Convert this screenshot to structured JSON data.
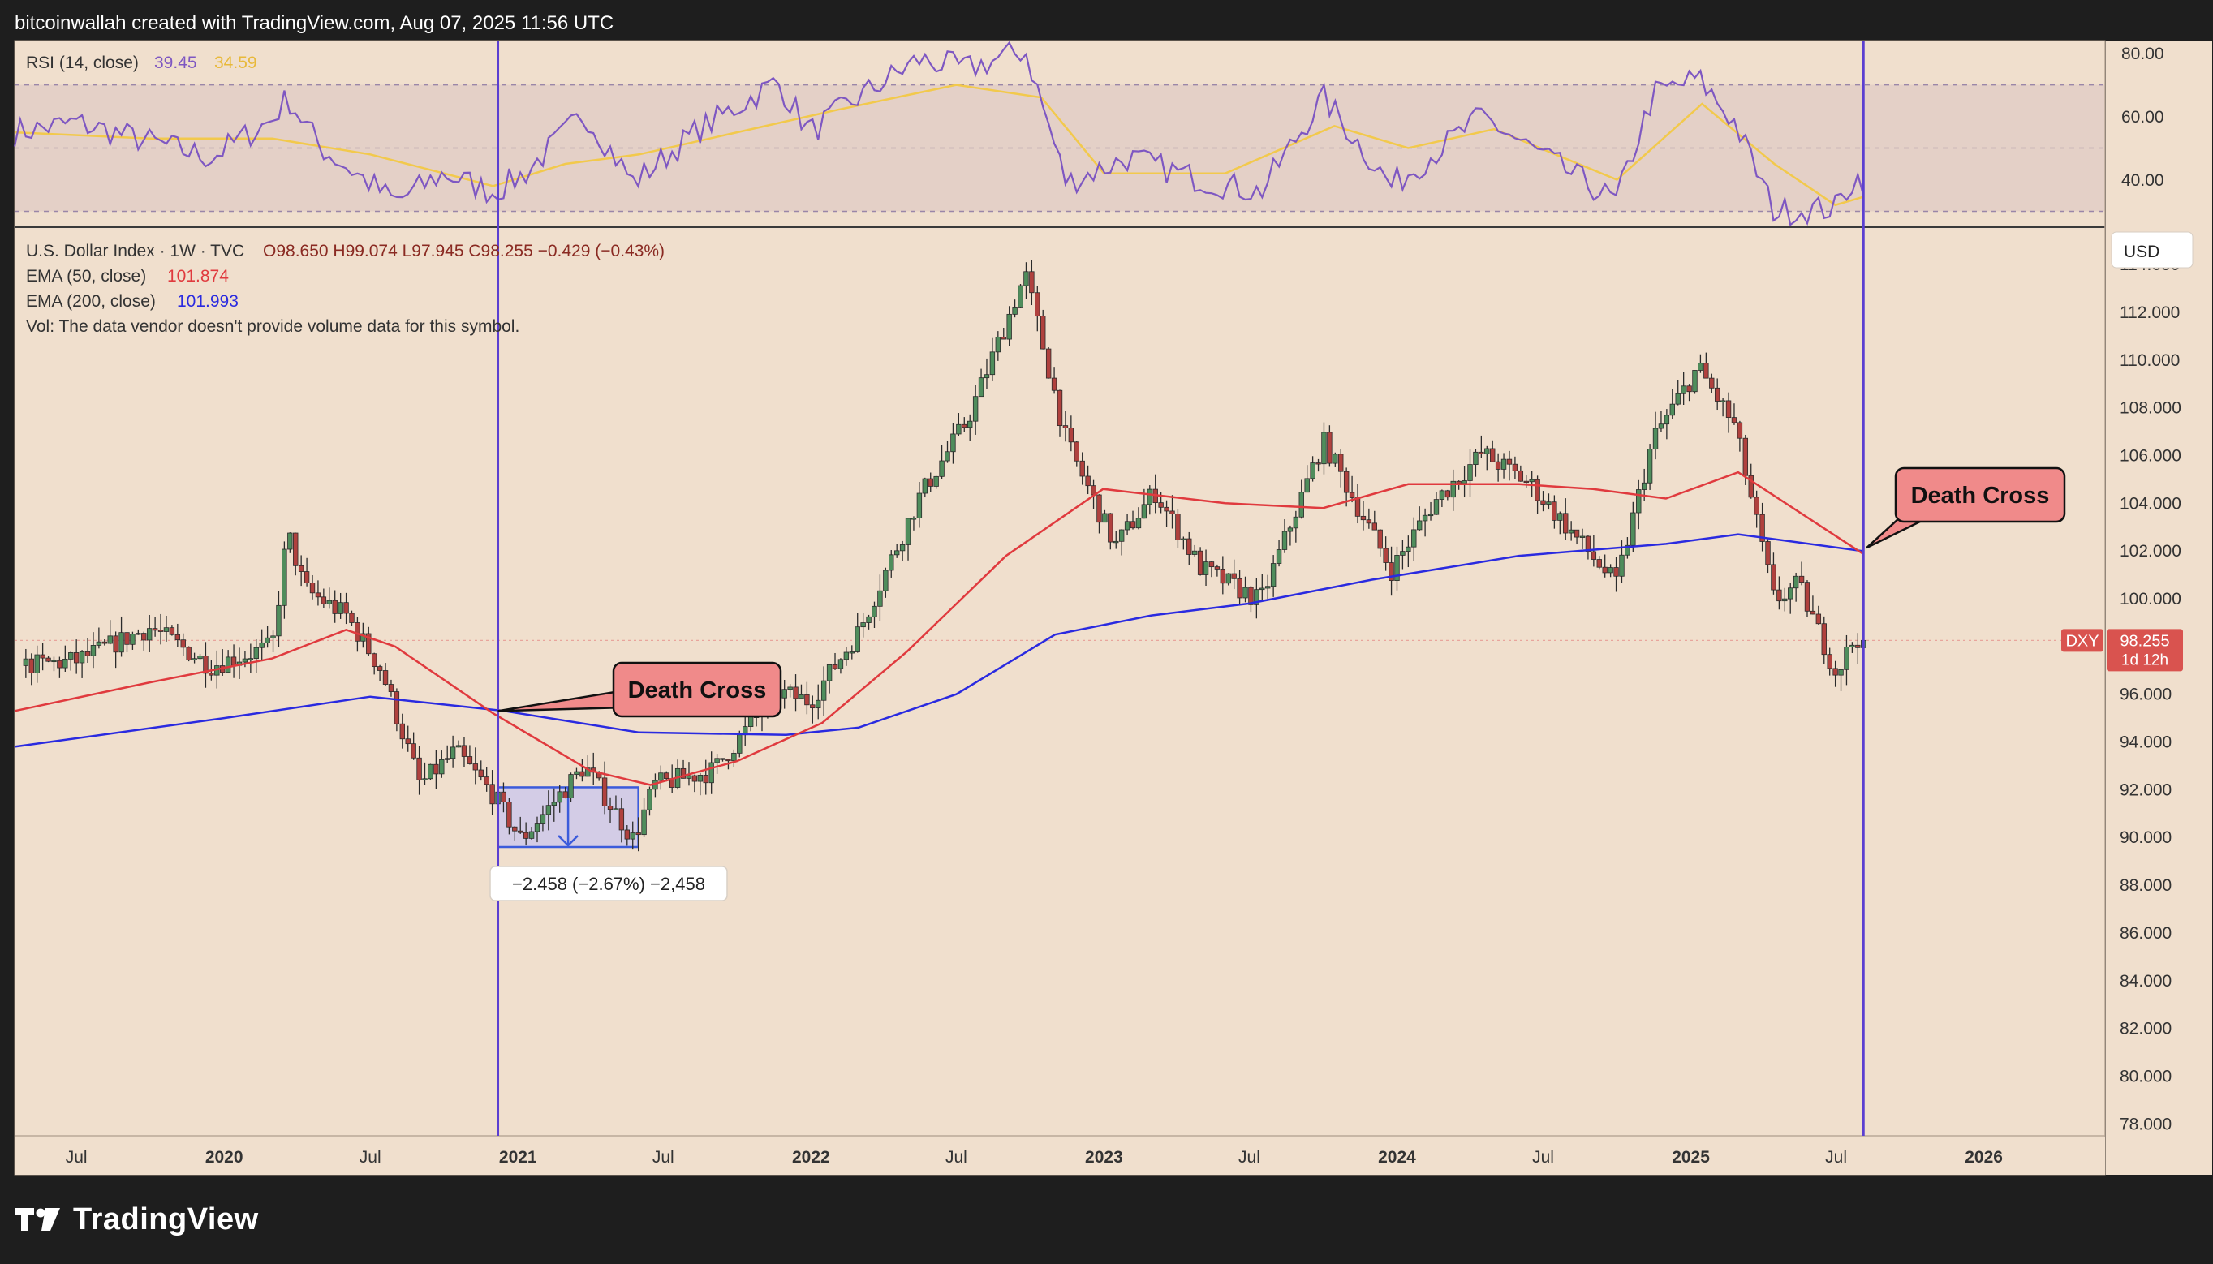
{
  "header": {
    "attribution": "bitcoinwallah created with TradingView.com, Aug 07, 2025 11:56 UTC"
  },
  "brand": {
    "name": "TradingView"
  },
  "colors": {
    "background": "#f0dfcd",
    "frame": "#1e1e1e",
    "candle_up": "#4f8d5c",
    "candle_down": "#b0413e",
    "ema50": "#e03a3e",
    "ema200": "#2a2ae0",
    "rsi": "#7e57c2",
    "rsi_ma": "#f2c94c",
    "vertical_marker": "#5b3fd1",
    "annotation_fill": "#f08a8a",
    "measure_box": "#c9c6ee",
    "dxy_tag": "#d9534f"
  },
  "rsi_panel": {
    "title": "RSI (14, close)",
    "value": "39.45",
    "ma_value": "34.59",
    "y_ticks": [
      "80.00",
      "60.00",
      "40.00"
    ]
  },
  "main_legend": {
    "symbol": "U.S. Dollar Index · 1W · TVC",
    "ohlc": "O98.650 H99.074 L97.945 C98.255 −0.429 (−0.43%)",
    "ema50_label": "EMA (50, close)",
    "ema50_value": "101.874",
    "ema200_label": "EMA (200, close)",
    "ema200_value": "101.993",
    "vol_note": "Vol: The data vendor doesn't provide volume data for this symbol."
  },
  "price_axis": {
    "currency": "USD",
    "ticks": [
      "114.000",
      "112.000",
      "110.000",
      "108.000",
      "106.000",
      "104.000",
      "102.000",
      "100.000",
      "98.000",
      "96.000",
      "94.000",
      "92.000",
      "90.000",
      "88.000",
      "86.000",
      "84.000",
      "82.000",
      "80.000",
      "78.000"
    ],
    "dxy_label": "DXY",
    "last_price": "98.255",
    "countdown": "1d 12h"
  },
  "time_axis": {
    "labels": [
      "Jul",
      "2020",
      "Jul",
      "2021",
      "Jul",
      "2022",
      "Jul",
      "2023",
      "Jul",
      "2024",
      "Jul",
      "2025",
      "Jul",
      "2026"
    ]
  },
  "annotations": {
    "death_cross_1": "Death Cross",
    "death_cross_2": "Death Cross",
    "measure_label": "−2.458 (−2.67%) −2,458"
  },
  "chart_data": {
    "type": "candlestick",
    "symbol": "DXY",
    "interval": "1W",
    "price_range": [
      77.5,
      115.5
    ],
    "rsi_range": [
      25,
      84
    ],
    "date_range": [
      "2019-04-15",
      "2026-06-01"
    ],
    "last_close": 98.255,
    "ema50_last": 101.874,
    "ema200_last": 101.993,
    "price_path": [
      [
        "2019-04-29",
        97.2
      ],
      [
        "2019-07-01",
        97.4
      ],
      [
        "2019-10-01",
        98.8
      ],
      [
        "2019-12-15",
        97.2
      ],
      [
        "2020-03-01",
        98.0
      ],
      [
        "2020-03-20",
        102.8
      ],
      [
        "2020-04-10",
        100.4
      ],
      [
        "2020-06-01",
        99.3
      ],
      [
        "2020-07-15",
        97.0
      ],
      [
        "2020-09-01",
        92.2
      ],
      [
        "2020-10-15",
        93.6
      ],
      [
        "2020-12-01",
        91.8
      ],
      [
        "2021-01-05",
        89.9
      ],
      [
        "2021-03-25",
        93.0
      ],
      [
        "2021-05-25",
        89.9
      ],
      [
        "2021-06-20",
        92.2
      ],
      [
        "2021-09-01",
        92.8
      ],
      [
        "2021-11-20",
        96.1
      ],
      [
        "2021-12-31",
        95.7
      ],
      [
        "2022-03-01",
        98.6
      ],
      [
        "2022-05-15",
        104.2
      ],
      [
        "2022-07-15",
        107.5
      ],
      [
        "2022-09-25",
        113.6
      ],
      [
        "2022-11-15",
        106.6
      ],
      [
        "2023-01-15",
        102.2
      ],
      [
        "2023-03-05",
        104.5
      ],
      [
        "2023-05-01",
        101.3
      ],
      [
        "2023-07-15",
        99.9
      ],
      [
        "2023-10-01",
        106.6
      ],
      [
        "2023-12-25",
        101.2
      ],
      [
        "2024-02-15",
        104.0
      ],
      [
        "2024-04-16",
        106.1
      ],
      [
        "2024-06-15",
        104.8
      ],
      [
        "2024-09-30",
        100.6
      ],
      [
        "2024-11-15",
        106.7
      ],
      [
        "2025-01-10",
        109.7
      ],
      [
        "2025-02-25",
        107.2
      ],
      [
        "2025-04-15",
        99.9
      ],
      [
        "2025-05-15",
        100.6
      ],
      [
        "2025-07-01",
        96.9
      ],
      [
        "2025-07-25",
        98.4
      ],
      [
        "2025-08-04",
        98.255
      ]
    ],
    "ema50_path": [
      [
        "2019-04-15",
        95.3
      ],
      [
        "2019-10-01",
        96.5
      ],
      [
        "2020-03-01",
        97.5
      ],
      [
        "2020-06-01",
        98.7
      ],
      [
        "2020-08-01",
        98.0
      ],
      [
        "2020-12-01",
        95.2
      ],
      [
        "2021-04-01",
        92.8
      ],
      [
        "2021-06-15",
        92.2
      ],
      [
        "2021-10-01",
        93.2
      ],
      [
        "2022-01-15",
        94.8
      ],
      [
        "2022-05-01",
        97.8
      ],
      [
        "2022-09-01",
        101.8
      ],
      [
        "2022-12-31",
        104.6
      ],
      [
        "2023-06-01",
        104.0
      ],
      [
        "2023-10-01",
        103.8
      ],
      [
        "2024-01-15",
        104.8
      ],
      [
        "2024-06-01",
        104.8
      ],
      [
        "2024-09-01",
        104.6
      ],
      [
        "2024-12-01",
        104.2
      ],
      [
        "2025-03-01",
        105.3
      ],
      [
        "2025-08-04",
        101.874
      ]
    ],
    "ema200_path": [
      [
        "2019-04-15",
        93.8
      ],
      [
        "2020-01-01",
        95.0
      ],
      [
        "2020-07-01",
        95.9
      ],
      [
        "2020-12-15",
        95.3
      ],
      [
        "2021-06-01",
        94.4
      ],
      [
        "2021-12-01",
        94.3
      ],
      [
        "2022-03-01",
        94.6
      ],
      [
        "2022-07-01",
        96.0
      ],
      [
        "2022-11-01",
        98.5
      ],
      [
        "2023-03-01",
        99.3
      ],
      [
        "2023-07-01",
        99.8
      ],
      [
        "2023-12-01",
        100.8
      ],
      [
        "2024-06-01",
        101.8
      ],
      [
        "2024-12-01",
        102.3
      ],
      [
        "2025-03-01",
        102.7
      ],
      [
        "2025-08-04",
        101.993
      ]
    ],
    "rsi_path": [
      [
        "2019-04-15",
        55
      ],
      [
        "2019-07-01",
        58
      ],
      [
        "2019-10-01",
        52
      ],
      [
        "2019-12-15",
        47
      ],
      [
        "2020-03-01",
        59
      ],
      [
        "2020-03-20",
        66
      ],
      [
        "2020-05-01",
        50
      ],
      [
        "2020-08-01",
        33
      ],
      [
        "2020-10-01",
        42
      ],
      [
        "2020-12-01",
        36
      ],
      [
        "2021-01-10",
        42
      ],
      [
        "2021-03-25",
        61
      ],
      [
        "2021-05-25",
        39
      ],
      [
        "2021-08-10",
        55
      ],
      [
        "2021-11-20",
        71
      ],
      [
        "2021-12-31",
        55
      ],
      [
        "2022-03-01",
        66
      ],
      [
        "2022-05-15",
        78
      ],
      [
        "2022-07-15",
        75
      ],
      [
        "2022-09-25",
        81
      ],
      [
        "2022-11-15",
        39
      ],
      [
        "2023-02-01",
        47
      ],
      [
        "2023-05-01",
        40
      ],
      [
        "2023-07-15",
        36
      ],
      [
        "2023-10-01",
        66
      ],
      [
        "2023-12-25",
        38
      ],
      [
        "2024-04-16",
        60
      ],
      [
        "2024-06-15",
        50
      ],
      [
        "2024-09-30",
        33
      ],
      [
        "2024-11-15",
        67
      ],
      [
        "2025-01-10",
        72
      ],
      [
        "2025-02-25",
        58
      ],
      [
        "2025-04-15",
        30
      ],
      [
        "2025-06-30",
        31
      ],
      [
        "2025-07-25",
        41
      ],
      [
        "2025-08-04",
        39.45
      ]
    ],
    "rsi_ma_path": [
      [
        "2019-04-15",
        55
      ],
      [
        "2019-10-01",
        53
      ],
      [
        "2020-03-01",
        53
      ],
      [
        "2020-07-01",
        48
      ],
      [
        "2020-12-01",
        38
      ],
      [
        "2021-03-01",
        45
      ],
      [
        "2021-06-01",
        48
      ],
      [
        "2021-10-01",
        55
      ],
      [
        "2022-02-01",
        62
      ],
      [
        "2022-07-01",
        70
      ],
      [
        "2022-10-15",
        66
      ],
      [
        "2023-01-01",
        42
      ],
      [
        "2023-06-01",
        42
      ],
      [
        "2023-10-15",
        57
      ],
      [
        "2024-01-15",
        50
      ],
      [
        "2024-05-01",
        56
      ],
      [
        "2024-10-01",
        40
      ],
      [
        "2025-01-15",
        64
      ],
      [
        "2025-04-15",
        45
      ],
      [
        "2025-06-30",
        32
      ],
      [
        "2025-08-04",
        34.59
      ]
    ],
    "rsi_levels": [
      70,
      50,
      30
    ],
    "markers": [
      {
        "label": "Death Cross",
        "date": "2020-12-07",
        "price": 95.3
      },
      {
        "label": "Death Cross",
        "date": "2025-08-04",
        "price": 102.0
      }
    ],
    "measure_range": {
      "start": "2020-12-07",
      "end": "2021-05-31",
      "high": 92.1,
      "low": 89.6
    }
  }
}
